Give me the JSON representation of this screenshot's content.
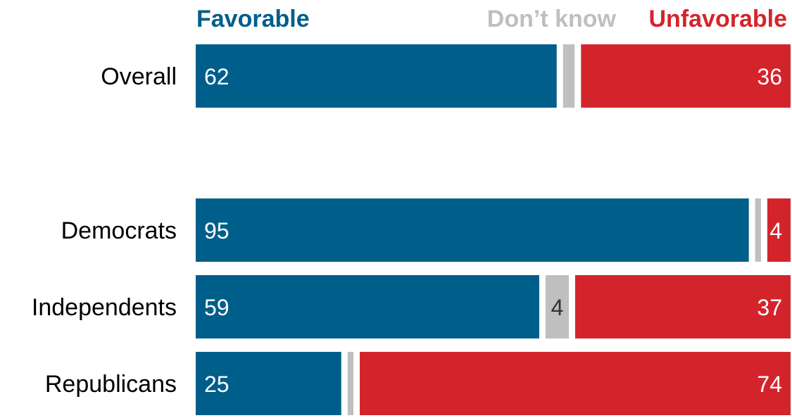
{
  "chart_data": {
    "type": "bar",
    "orientation": "horizontal",
    "stacked": true,
    "legend_placement": "top",
    "grid": false,
    "xlim": [
      0,
      100
    ],
    "categories": [
      "Overall",
      "Democrats",
      "Independents",
      "Republicans"
    ],
    "series": [
      {
        "name": "Favorable",
        "color": "#005e8a",
        "values": [
          62,
          95,
          59,
          25
        ],
        "labels": [
          "62",
          "95",
          "59",
          "25"
        ]
      },
      {
        "name": "Don’t know",
        "color": "#bfbfbf",
        "values": [
          2,
          1,
          4,
          1
        ],
        "labels": [
          "",
          "",
          "4",
          ""
        ]
      },
      {
        "name": "Unfavorable",
        "color": "#d4242b",
        "values": [
          36,
          4,
          37,
          74
        ],
        "labels": [
          "36",
          "4",
          "37",
          "74"
        ]
      }
    ]
  }
}
